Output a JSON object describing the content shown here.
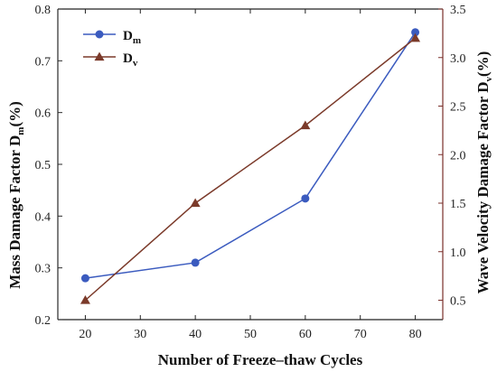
{
  "chart_data": {
    "type": "line",
    "x": [
      20,
      40,
      60,
      80
    ],
    "xlabel": "Number of Freeze–thaw Cycles",
    "xlim": [
      15,
      85
    ],
    "xticks": [
      20,
      30,
      40,
      50,
      60,
      70,
      80
    ],
    "y_left": {
      "label_main": "Mass Damage Factor D",
      "label_sub": "m",
      "label_end": "(%)",
      "lim": [
        0.2,
        0.8
      ],
      "ticks": [
        0.2,
        0.3,
        0.4,
        0.5,
        0.6,
        0.7,
        0.8
      ],
      "tick_labels": [
        "0.2",
        "0.3",
        "0.4",
        "0.5",
        "0.6",
        "0.7",
        "0.8"
      ],
      "color": "#2a2a2a"
    },
    "y_right": {
      "label_main": "Wave Velocity Damage Factor D",
      "label_sub": "v",
      "label_end": "(%)",
      "lim": [
        0.3,
        3.5
      ],
      "ticks": [
        0.5,
        1.0,
        1.5,
        2.0,
        2.5,
        3.0,
        3.5
      ],
      "tick_labels": [
        "0.5",
        "1.0",
        "1.5",
        "2.0",
        "2.5",
        "3.0",
        "3.5"
      ],
      "color": "#7a2f2a"
    },
    "series": [
      {
        "name_main": "D",
        "name_sub": "m",
        "axis": "left",
        "marker": "circle",
        "color": "#3b5bbf",
        "values": [
          0.28,
          0.31,
          0.434,
          0.755
        ]
      },
      {
        "name_main": "D",
        "name_sub": "v",
        "axis": "right",
        "marker": "triangle",
        "color": "#7b3a2a",
        "values": [
          0.5,
          1.5,
          2.3,
          3.2
        ]
      }
    ],
    "legend_position": "top-left",
    "grid": false
  }
}
